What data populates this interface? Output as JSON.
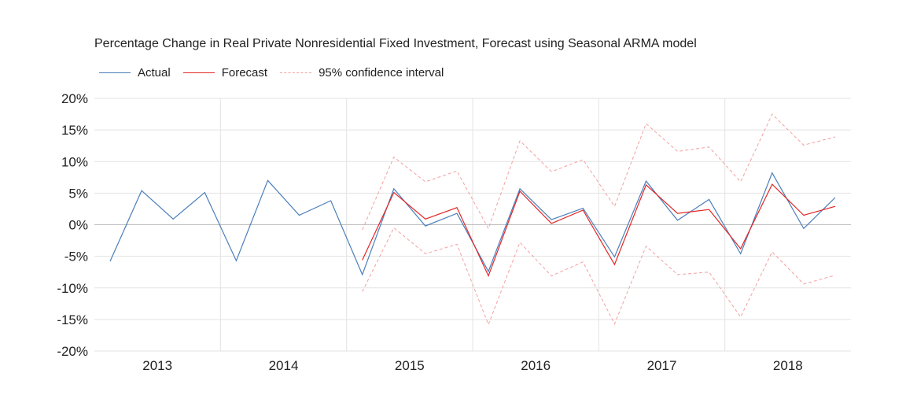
{
  "chart_data": {
    "type": "line",
    "title": "Percentage Change in Real Private Nonresidential Fixed Investment, Forecast using Seasonal ARMA model",
    "xlabel": "",
    "ylabel": "",
    "ylim": [
      -20,
      20
    ],
    "y_ticks": [
      -20,
      -15,
      -10,
      -5,
      0,
      5,
      10,
      15,
      20
    ],
    "y_tick_labels": [
      "-20%",
      "-15%",
      "-10%",
      "-5%",
      "0%",
      "5%",
      "10%",
      "15%",
      "20%"
    ],
    "year_labels": [
      "2013",
      "2014",
      "2015",
      "2016",
      "2017",
      "2018"
    ],
    "quarters_per_year": 4,
    "grid": true,
    "legend_position": "top-left",
    "colors": {
      "actual": "#4a7ebb",
      "forecast": "#e32626",
      "ci": "#f4a0a0"
    },
    "series": [
      {
        "name": "Actual",
        "key": "actual",
        "start_index": 0,
        "values": [
          -5.8,
          5.4,
          0.9,
          5.1,
          -5.7,
          7.0,
          1.5,
          3.8,
          -7.9,
          5.7,
          -0.2,
          1.8,
          -7.4,
          5.7,
          0.8,
          2.6,
          -5.1,
          6.9,
          0.7,
          4.0,
          -4.6,
          8.2,
          -0.6,
          4.3
        ]
      },
      {
        "name": "Forecast",
        "key": "forecast",
        "start_index": 8,
        "values": [
          -5.6,
          5.1,
          0.9,
          2.7,
          -8.1,
          5.3,
          0.2,
          2.3,
          -6.3,
          6.3,
          1.8,
          2.4,
          -3.8,
          6.4,
          1.5,
          2.9
        ]
      },
      {
        "name": "95% confidence interval",
        "key": "ci",
        "start_index": 8,
        "upper": [
          -0.8,
          10.7,
          6.8,
          8.5,
          -0.6,
          13.3,
          8.4,
          10.3,
          2.9,
          16.0,
          11.6,
          12.3,
          6.8,
          17.5,
          12.6,
          13.9
        ],
        "lower": [
          -10.6,
          -0.5,
          -4.6,
          -3.1,
          -15.8,
          -2.8,
          -8.1,
          -5.9,
          -15.7,
          -3.4,
          -7.9,
          -7.5,
          -14.6,
          -4.3,
          -9.4,
          -8.0
        ]
      }
    ]
  }
}
